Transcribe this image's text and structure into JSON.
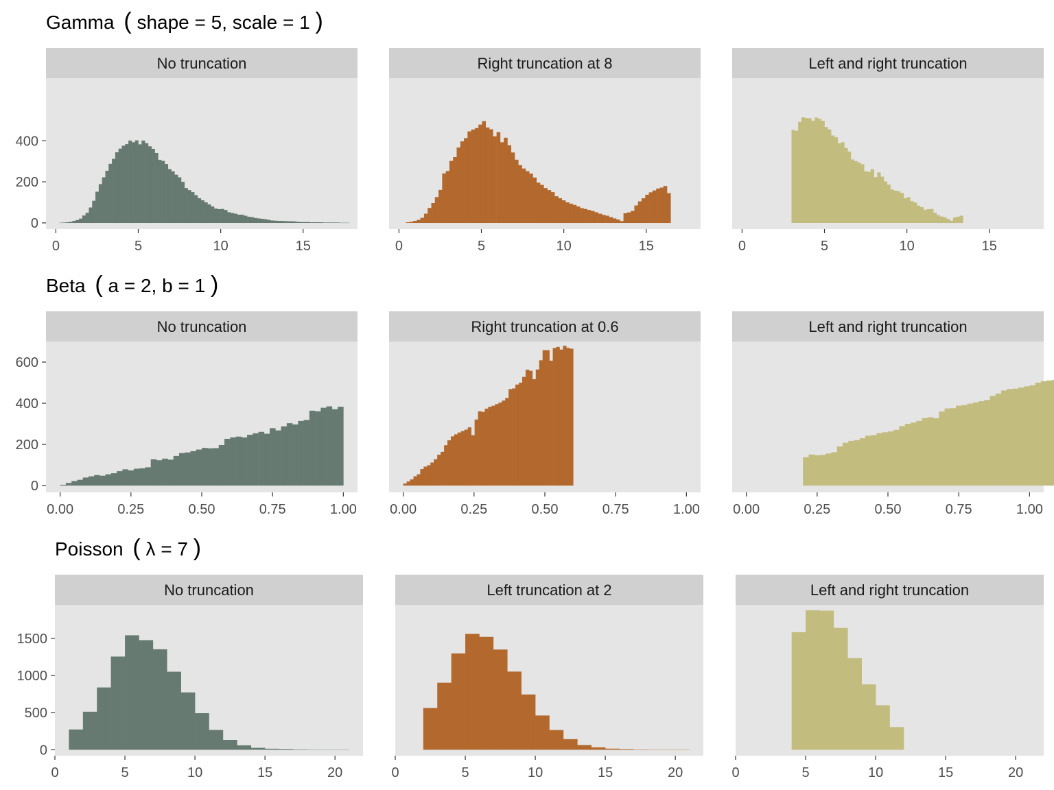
{
  "colors": {
    "no_truncation": "#667a72",
    "one_sided": "#b3692d",
    "two_sided": "#c2bc7e",
    "panel_background": "#e5e5e5",
    "strip_background": "#d0d0d0",
    "tick_text": "#4d4d4d"
  },
  "chart_data": [
    {
      "type": "bar",
      "row_title": "Gamma (shape = 5, scale = 1)",
      "title_parts": [
        "Gamma",
        "(",
        "shape = 5, scale = 1",
        ")"
      ],
      "xlim": [
        -0.6,
        18.3
      ],
      "ylim": [
        -30,
        705
      ],
      "x_ticks": [
        0,
        5,
        10,
        15
      ],
      "x_tick_labels": [
        "0",
        "5",
        "10",
        "15"
      ],
      "y_ticks": [
        0,
        200,
        400
      ],
      "y_tick_labels": [
        "0",
        "200",
        "400"
      ],
      "panels": [
        {
          "strip": "No truncation",
          "color_key": "no_truncation",
          "bin_start": 0.2,
          "bin_width": 0.2,
          "values": [
            1,
            2,
            3,
            5,
            10,
            14,
            21,
            36,
            49,
            75,
            108,
            152,
            189,
            222,
            254,
            288,
            312,
            344,
            362,
            376,
            384,
            401,
            393,
            402,
            383,
            401,
            388,
            373,
            361,
            341,
            307,
            302,
            287,
            262,
            251,
            235,
            222,
            200,
            170,
            160,
            150,
            135,
            120,
            110,
            100,
            90,
            80,
            70,
            67,
            68,
            63,
            52,
            48,
            45,
            40,
            40,
            35,
            30,
            28,
            24,
            22,
            20,
            18,
            15,
            12,
            11,
            10,
            10,
            9,
            8,
            8,
            7,
            5,
            4,
            4,
            4,
            3,
            3,
            3,
            3,
            2,
            2,
            2,
            2,
            2,
            1,
            1,
            1
          ]
        },
        {
          "strip": "Right truncation at 8",
          "color_key": "one_sided",
          "bin_start": 0.42,
          "bin_width": 0.22,
          "values": [
            3,
            5,
            10,
            15,
            25,
            45,
            73,
            97,
            126,
            161,
            241,
            253,
            302,
            321,
            367,
            397,
            413,
            446,
            455,
            462,
            479,
            496,
            465,
            456,
            422,
            442,
            393,
            415,
            378,
            343,
            308,
            281,
            265,
            252,
            240,
            221,
            196,
            185,
            170,
            160,
            150,
            130,
            120,
            110,
            100,
            94,
            88,
            80,
            72,
            68,
            63,
            58,
            52,
            45,
            39,
            35,
            28,
            22,
            16,
            9,
            47,
            51,
            58,
            85,
            105,
            120,
            137,
            149,
            158,
            167,
            172,
            180,
            145
          ]
        },
        {
          "strip": "Left and right truncation",
          "color_key": "two_sided",
          "bin_start": 3.0,
          "bin_width": 0.2,
          "values": [
            453,
            449,
            492,
            514,
            511,
            510,
            498,
            513,
            507,
            497,
            467,
            455,
            426,
            417,
            388,
            393,
            365,
            347,
            309,
            301,
            294,
            286,
            251,
            249,
            262,
            223,
            246,
            225,
            202,
            186,
            163,
            157,
            154,
            146,
            120,
            125,
            106,
            99,
            84,
            77,
            64,
            67,
            68,
            49,
            38,
            31,
            27,
            19,
            11,
            26,
            30,
            35
          ]
        }
      ]
    },
    {
      "type": "bar",
      "row_title": "Beta (a = 2, b = 1)",
      "title_parts": [
        "Beta",
        "(",
        "a = 2, b = 1",
        ")"
      ],
      "xlim": [
        -0.05,
        1.05
      ],
      "ylim": [
        -33,
        700
      ],
      "x_ticks": [
        0,
        0.25,
        0.5,
        0.75,
        1
      ],
      "x_tick_labels": [
        "0.00",
        "0.25",
        "0.50",
        "0.75",
        "1.00"
      ],
      "y_ticks": [
        0,
        200,
        400,
        600
      ],
      "y_tick_labels": [
        "0",
        "200",
        "400",
        "600"
      ],
      "panels": [
        {
          "strip": "No truncation",
          "color_key": "no_truncation",
          "bin_start": 0.0,
          "bin_width": 0.02,
          "values": [
            4,
            13,
            22,
            28,
            39,
            45,
            51,
            48,
            55,
            60,
            70,
            79,
            74,
            82,
            84,
            89,
            128,
            123,
            131,
            126,
            144,
            158,
            161,
            167,
            175,
            183,
            181,
            182,
            197,
            227,
            234,
            238,
            234,
            247,
            254,
            261,
            252,
            279,
            268,
            288,
            303,
            297,
            314,
            319,
            364,
            361,
            378,
            385,
            371,
            383
          ]
        },
        {
          "strip": "Right truncation at 0.6",
          "color_key": "one_sided",
          "bin_start": 0.0,
          "bin_width": 0.012,
          "values": [
            10,
            20,
            30,
            45,
            55,
            80,
            92,
            99,
            112,
            128,
            150,
            164,
            196,
            220,
            239,
            249,
            258,
            265,
            272,
            283,
            245,
            321,
            361,
            358,
            374,
            383,
            388,
            396,
            403,
            413,
            426,
            469,
            472,
            491,
            500,
            528,
            563,
            558,
            517,
            564,
            609,
            658,
            658,
            607,
            668,
            674,
            661,
            679,
            669,
            665
          ]
        },
        {
          "strip": "Left and right truncation",
          "color_key": "two_sided",
          "bin_start": 0.2,
          "bin_width": 0.02,
          "values": [
            138,
            151,
            147,
            149,
            156,
            162,
            190,
            208,
            217,
            221,
            230,
            242,
            245,
            255,
            259,
            263,
            271,
            289,
            300,
            306,
            314,
            328,
            332,
            327,
            360,
            375,
            376,
            388,
            391,
            398,
            404,
            410,
            416,
            436,
            447,
            462,
            469,
            471,
            476,
            482,
            487,
            500,
            507,
            511,
            514,
            521,
            519,
            526,
            536,
            535
          ]
        }
      ]
    },
    {
      "type": "bar",
      "row_title": "Poisson (λ = 7)",
      "title_parts": [
        "Poisson",
        "(",
        "λ = 7",
        ")"
      ],
      "xlim": [
        0,
        22
      ],
      "ylim": [
        -80,
        1950
      ],
      "x_ticks": [
        0,
        5,
        10,
        15,
        20
      ],
      "x_tick_labels": [
        "0",
        "5",
        "10",
        "15",
        "20"
      ],
      "y_ticks": [
        0,
        500,
        1000,
        1500
      ],
      "y_tick_labels": [
        "0",
        "500",
        "1000",
        "1500"
      ],
      "panels": [
        {
          "strip": "No truncation",
          "color_key": "no_truncation",
          "bin_start": 1,
          "bin_width": 1,
          "values": [
            273,
            512,
            838,
            1254,
            1540,
            1475,
            1353,
            1050,
            772,
            492,
            267,
            132,
            60,
            26,
            14,
            11,
            6,
            4,
            3,
            2
          ]
        },
        {
          "strip": "Left truncation at 2",
          "color_key": "one_sided",
          "bin_start": 2,
          "bin_width": 1,
          "values": [
            563,
            902,
            1297,
            1560,
            1519,
            1349,
            1052,
            744,
            461,
            266,
            143,
            64,
            33,
            15,
            10,
            5,
            3,
            2,
            2
          ]
        },
        {
          "strip": "Left and right truncation",
          "color_key": "two_sided",
          "bin_start": 4,
          "bin_width": 1,
          "values": [
            1582,
            1877,
            1872,
            1639,
            1233,
            880,
            599,
            305
          ]
        }
      ]
    }
  ]
}
